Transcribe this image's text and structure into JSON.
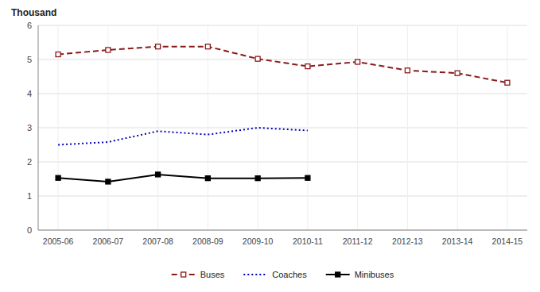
{
  "chart_data": {
    "type": "line",
    "ylabel": "Thousand",
    "categories": [
      "2005-06",
      "2006-07",
      "2007-08",
      "2008-09",
      "2009-10",
      "2010-11",
      "2011-12",
      "2012-13",
      "2013-14",
      "2014-15"
    ],
    "series": [
      {
        "name": "Buses",
        "color": "#8B1A1A",
        "marker": "square-open",
        "line_style": "dashed",
        "values": [
          5.15,
          5.28,
          5.38,
          5.38,
          5.02,
          4.8,
          4.93,
          4.68,
          4.6,
          4.32
        ]
      },
      {
        "name": "Coaches",
        "color": "#0000BB",
        "marker": "none",
        "line_style": "dotted",
        "values": [
          2.5,
          2.58,
          2.9,
          2.8,
          3.0,
          2.92,
          null,
          null,
          null,
          null
        ]
      },
      {
        "name": "Minibuses",
        "color": "#000000",
        "marker": "square",
        "line_style": "solid",
        "values": [
          1.53,
          1.42,
          1.63,
          1.52,
          1.52,
          1.53,
          null,
          null,
          null,
          null
        ]
      }
    ],
    "ylim": [
      0,
      6
    ],
    "yticks": [
      0,
      1,
      2,
      3,
      4,
      5,
      6
    ],
    "grid": true,
    "legend": "bottom"
  }
}
